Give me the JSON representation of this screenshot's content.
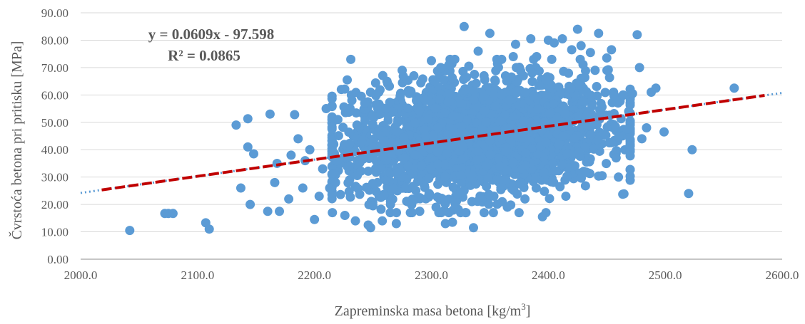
{
  "chart_data": {
    "type": "scatter",
    "title": "",
    "xlabel": "Zapreminska masa betona [kg/m",
    "xlabel_superscript": "3",
    "xlabel_suffix": "]",
    "ylabel": "Čvrstoća betona pri pritisku [MPa]",
    "xlim": [
      2000,
      2600
    ],
    "ylim": [
      0,
      90
    ],
    "x_ticks": [
      "2000.0",
      "2100.0",
      "2200.0",
      "2300.0",
      "2400.0",
      "2500.0",
      "2600.0"
    ],
    "y_ticks": [
      "0.00",
      "10.00",
      "20.00",
      "30.00",
      "40.00",
      "50.00",
      "60.00",
      "70.00",
      "80.00",
      "90.00"
    ],
    "grid": "horizontal",
    "legend": "none",
    "colors": {
      "points": "#5b9bd5",
      "trendline": "#c00000",
      "trendline_dots": "#5b9bd5",
      "grid": "#d9d9d9",
      "axis": "#8c8c8c",
      "text": "#595959"
    },
    "annotations": {
      "equation": "y = 0.0609x - 97.598",
      "r_squared": "R² = 0.0865"
    },
    "trendline": {
      "slope": 0.0609,
      "intercept": -97.598,
      "x_range": [
        2000,
        2600
      ]
    },
    "dense_cloud": {
      "x_center": 2340,
      "x_spread": 55,
      "y_center": 45,
      "y_spread": 10,
      "count": 2600
    },
    "series": [
      {
        "x": [
          2042,
          2072,
          2075,
          2079,
          2107,
          2110,
          2133,
          2137,
          2143,
          2143,
          2145,
          2148,
          2160,
          2162,
          2166,
          2168,
          2170,
          2178,
          2180,
          2183,
          2186,
          2190,
          2192,
          2196,
          2200,
          2204,
          2207,
          2210,
          2213,
          2218,
          2220,
          2223,
          2226,
          2228,
          2230,
          2232,
          2235,
          2240,
          2243,
          2246,
          2248,
          2250,
          2255,
          2258,
          2262,
          2265,
          2270,
          2275,
          2280,
          2285,
          2290,
          2295,
          2298,
          2300,
          2304,
          2308,
          2312,
          2315,
          2318,
          2320,
          2325,
          2328,
          2332,
          2336,
          2340,
          2345,
          2350,
          2353,
          2356,
          2360,
          2365,
          2370,
          2372,
          2376,
          2380,
          2385,
          2390,
          2395,
          2398,
          2400,
          2405,
          2410,
          2412,
          2415,
          2420,
          2425,
          2428,
          2432,
          2436,
          2440,
          2443,
          2446,
          2450,
          2454,
          2458,
          2460,
          2464,
          2468,
          2472,
          2476,
          2478,
          2480,
          2484,
          2488,
          2492,
          2499,
          2520,
          2523,
          2559
        ],
        "y": [
          10.5,
          16.7,
          16.7,
          16.7,
          13.3,
          11.0,
          49.0,
          26.0,
          51.3,
          41.0,
          20.0,
          38.5,
          17.5,
          53.0,
          28.0,
          35.0,
          17.5,
          22.0,
          38.0,
          52.8,
          44.0,
          26.0,
          36.0,
          40.0,
          14.5,
          23.0,
          33.0,
          55.0,
          26.0,
          28.0,
          51.0,
          62.0,
          16.0,
          65.5,
          34.0,
          58.0,
          14.0,
          59.5,
          57.0,
          12.5,
          11.5,
          19.5,
          61.0,
          14.0,
          65.0,
          20.0,
          13.0,
          69.0,
          21.0,
          67.0,
          17.5,
          58.0,
          24.0,
          72.5,
          19.0,
          70.0,
          13.0,
          71.0,
          13.5,
          73.0,
          17.0,
          85.0,
          70.5,
          11.5,
          76.0,
          67.0,
          82.5,
          17.0,
          73.0,
          60.0,
          19.0,
          74.0,
          78.5,
          28.0,
          22.0,
          80.5,
          74.0,
          15.5,
          17.0,
          80.0,
          79.0,
          26.5,
          80.5,
          23.0,
          76.5,
          84.0,
          78.0,
          52.0,
          75.5,
          69.0,
          82.5,
          30.5,
          73.5,
          76.5,
          37.0,
          30.0,
          60.0,
          47.5,
          60.5,
          82.0,
          70.0,
          44.0,
          48.0,
          61.0,
          62.5,
          46.5,
          24.0,
          40.0,
          62.5
        ]
      }
    ]
  }
}
